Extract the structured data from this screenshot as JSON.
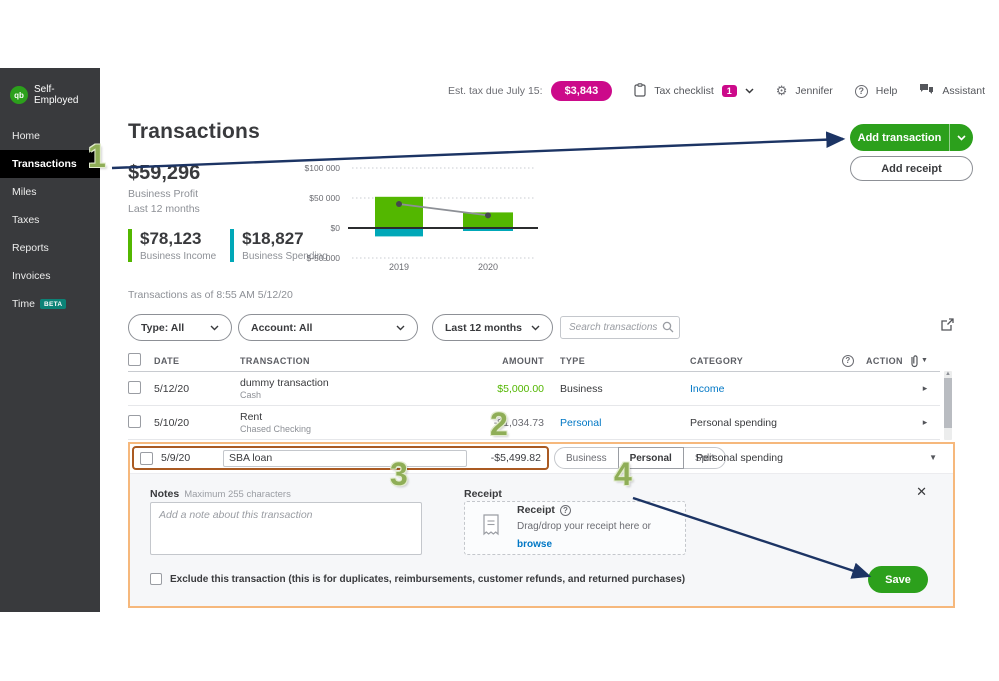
{
  "colors": {
    "brand_green": "#2ca01c",
    "magenta": "#cc0a8a",
    "link_blue": "#0077c5",
    "income_green": "#53b700",
    "spending_teal": "#00a8b8",
    "annotation_green": "#8fae57",
    "arrow_navy": "#1c3464",
    "panel_border_orange": "#f6b87c",
    "field_border_orange": "#aa5a22",
    "sidebar_bg": "#393a3d"
  },
  "topbar": {
    "est_tax_label": "Est. tax due July 15:",
    "est_tax_value": "$3,843",
    "tax_checklist_label": "Tax checklist",
    "tax_checklist_badge": "1",
    "user_name": "Jennifer",
    "help_label": "Help",
    "assistant_label": "Assistant"
  },
  "sidebar": {
    "logo_text": "qb",
    "brand": "Self-Employed",
    "items": [
      {
        "label": "Home"
      },
      {
        "label": "Transactions"
      },
      {
        "label": "Miles"
      },
      {
        "label": "Taxes"
      },
      {
        "label": "Reports"
      },
      {
        "label": "Invoices"
      },
      {
        "label": "Time",
        "badge": "BETA"
      }
    ]
  },
  "header": {
    "title": "Transactions",
    "add_transaction_label": "Add transaction",
    "add_receipt_label": "Add receipt"
  },
  "stats": {
    "profit_value": "$59,296",
    "profit_label": "Business Profit",
    "profit_period": "Last 12 months",
    "income_value": "$78,123",
    "income_label": "Business Income",
    "spending_value": "$18,827",
    "spending_label": "Business Spending"
  },
  "chart_data": {
    "type": "bar",
    "categories": [
      "2019",
      "2020"
    ],
    "series": [
      {
        "name": "Business Income",
        "type": "bar",
        "color": "#53b700",
        "values": [
          52000,
          26000
        ]
      },
      {
        "name": "Business Spending",
        "type": "bar",
        "color": "#00a8b8",
        "values": [
          -14000,
          -5000
        ]
      },
      {
        "name": "Profit",
        "type": "line",
        "color": "#8d9096",
        "values": [
          40000,
          21000
        ]
      }
    ],
    "yticks": [
      {
        "label": "$100 000",
        "value": 100000
      },
      {
        "label": "$50 000",
        "value": 50000
      },
      {
        "label": "$0",
        "value": 0
      },
      {
        "label": "$-50 000",
        "value": -50000
      }
    ],
    "ylim": [
      -50000,
      100000
    ],
    "grid": "dotted-horizontal",
    "legend": "none"
  },
  "toolbar": {
    "as_of": "Transactions as of 8:55 AM 5/12/20",
    "type_filter": "Type: All",
    "account_filter": "Account: All",
    "period_filter": "Last 12 months",
    "search_placeholder": "Search transactions"
  },
  "table": {
    "columns": {
      "date": "DATE",
      "transaction": "TRANSACTION",
      "amount": "AMOUNT",
      "type": "TYPE",
      "category": "CATEGORY",
      "action": "ACTION"
    },
    "rows": [
      {
        "date": "5/12/20",
        "name": "dummy transaction",
        "account": "Cash",
        "amount": "$5,000.00",
        "type": "Business",
        "category": "Income"
      },
      {
        "date": "5/10/20",
        "name": "Rent",
        "account": "Chased Checking",
        "amount": "-$1,034.73",
        "type": "Personal",
        "category": "Personal spending"
      }
    ]
  },
  "editor": {
    "date": "5/9/20",
    "name_value": "SBA loan",
    "amount": "-$5,499.82",
    "segments": [
      "Business",
      "Personal",
      "Split"
    ],
    "selected_segment": "Personal",
    "category": "Personal spending",
    "notes_label": "Notes",
    "notes_hint": "Maximum 255 characters",
    "notes_placeholder": "Add a note about this transaction",
    "receipt_section_label": "Receipt",
    "receipt_box_title": "Receipt",
    "receipt_box_hint": "Drag/drop your receipt here or",
    "receipt_browse_label": "browse",
    "exclude_label": "Exclude this transaction (this is for duplicates, reimbursements, customer refunds, and returned purchases)",
    "save_label": "Save",
    "close_glyph": "✕"
  },
  "annotations": {
    "steps": [
      "1",
      "2",
      "3",
      "4"
    ]
  }
}
